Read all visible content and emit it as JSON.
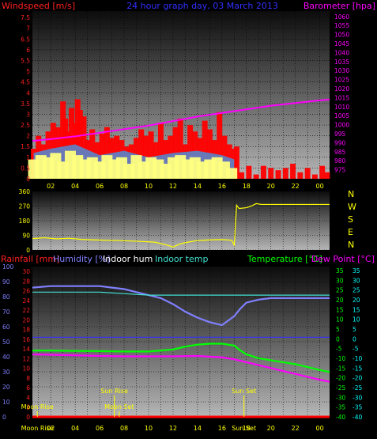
{
  "chart_data": [
    {
      "type": "bar",
      "title": "24 hour graph day, 03 March 2013",
      "ylabel_left": "Windspeed [m/s]",
      "ylabel_right": "Barometer [hpa]",
      "x_ticks": [
        "02",
        "04",
        "06",
        "08",
        "10",
        "12",
        "14",
        "16",
        "18",
        "20",
        "22",
        "00"
      ],
      "y_left_ticks": [
        "0",
        "0.5",
        "1",
        "1.5",
        "2",
        "2.5",
        "3",
        "3.5",
        "4",
        "4.5",
        "5",
        "5.5",
        "6",
        "6.5",
        "7",
        "7.5"
      ],
      "y_right_ticks": [
        "975",
        "980",
        "985",
        "990",
        "995",
        "1000",
        "1005",
        "1010",
        "1015",
        "1020",
        "1025",
        "1030",
        "1035",
        "1040",
        "1045",
        "1050",
        "1055",
        "1060"
      ],
      "ylim_left": [
        0,
        7.8
      ],
      "ylim_right": [
        970,
        1063
      ],
      "xlim_hours": [
        0.5,
        24.8
      ],
      "grid": true,
      "series": [
        {
          "name": "Windspeed [m/s]",
          "color": "#ff0000",
          "kind": "bar",
          "x": [
            0.6,
            1.0,
            1.4,
            1.8,
            2.2,
            2.6,
            3.0,
            3.2,
            3.4,
            3.7,
            4.0,
            4.2,
            4.4,
            4.7,
            5.0,
            5.4,
            5.8,
            6.2,
            6.6,
            7.0,
            7.4,
            7.8,
            8.2,
            8.6,
            9.0,
            9.4,
            9.8,
            10.2,
            10.6,
            11.0,
            11.4,
            11.8,
            12.2,
            12.6,
            13.0,
            13.4,
            13.8,
            14.2,
            14.6,
            15.0,
            15.4,
            15.8,
            16.2,
            16.6,
            17.0,
            17.2,
            17.6,
            18.2,
            18.8,
            19.4,
            20.0,
            20.6,
            21.2,
            21.8,
            22.4,
            23.0,
            23.6,
            24.2,
            24.6
          ],
          "values": [
            1.4,
            2.0,
            1.6,
            2.2,
            2.6,
            2.4,
            3.6,
            2.8,
            2.2,
            3.3,
            2.6,
            3.7,
            3.2,
            2.9,
            1.8,
            2.3,
            1.7,
            2.1,
            2.4,
            1.9,
            2.0,
            1.8,
            1.5,
            1.6,
            1.9,
            2.3,
            2.0,
            2.2,
            1.7,
            2.6,
            1.8,
            2.0,
            2.4,
            2.8,
            1.6,
            2.5,
            2.2,
            1.9,
            2.7,
            2.3,
            1.8,
            3.1,
            2.0,
            1.6,
            1.4,
            1.5,
            0.3,
            0.6,
            0.2,
            0.6,
            0.5,
            0.4,
            0.5,
            0.7,
            0.3,
            0.5,
            0.2,
            0.6,
            0.3
          ]
        },
        {
          "name": "Wind gust",
          "color": "#4f8cd6",
          "kind": "band",
          "x": [
            0.6,
            2.0,
            4.0,
            6.0,
            8.0,
            10.0,
            12.0,
            14.0,
            16.0,
            17.0
          ],
          "values": [
            1.2,
            1.4,
            1.6,
            1.1,
            1.3,
            1.0,
            1.2,
            1.3,
            1.1,
            0.9
          ]
        },
        {
          "name": "Wind average",
          "color": "#ffff80",
          "kind": "bar",
          "x": [
            0.6,
            1.2,
            1.8,
            2.4,
            3.0,
            3.6,
            4.2,
            4.8,
            5.4,
            6.0,
            6.6,
            7.2,
            7.8,
            8.4,
            9.0,
            9.6,
            10.2,
            10.8,
            11.4,
            12.0,
            12.6,
            13.2,
            13.8,
            14.4,
            15.0,
            15.6,
            16.2,
            16.8
          ],
          "values": [
            0.9,
            1.1,
            1.0,
            1.2,
            0.8,
            1.3,
            1.1,
            0.9,
            1.0,
            0.8,
            1.1,
            0.9,
            1.0,
            0.7,
            1.1,
            0.8,
            1.0,
            0.9,
            0.7,
            1.0,
            1.1,
            0.9,
            1.0,
            0.8,
            0.9,
            1.0,
            0.8,
            0.5
          ]
        },
        {
          "name": "Barometer [hpa]",
          "color": "#ff00ff",
          "kind": "line",
          "x": [
            0.5,
            2,
            4,
            6,
            8,
            10,
            12,
            14,
            16,
            18,
            20,
            22,
            24,
            24.8
          ],
          "values": [
            991.0,
            992.0,
            993.5,
            995.5,
            997.5,
            999.5,
            1002.0,
            1004.5,
            1006.5,
            1008.5,
            1010.5,
            1012.0,
            1013.5,
            1014.0
          ]
        }
      ]
    },
    {
      "type": "line",
      "ylabel_right": "N W S E N",
      "compass": [
        "N",
        "W",
        "S",
        "E",
        "N"
      ],
      "y_ticks": [
        "0",
        "90",
        "180",
        "270",
        "360"
      ],
      "ylim": [
        0,
        360
      ],
      "xlim_hours": [
        0.5,
        24.8
      ],
      "grid": true,
      "series": [
        {
          "name": "Wind direction",
          "color": "#ffff00",
          "x": [
            0.5,
            1.5,
            2.5,
            3.5,
            4.5,
            5.5,
            6.5,
            7.5,
            8.5,
            9.5,
            10.5,
            11.5,
            12.0,
            12.5,
            13.0,
            14.0,
            15.0,
            16.0,
            16.8,
            17.0,
            17.2,
            17.4,
            18.0,
            18.4,
            18.8,
            19.2,
            20,
            22,
            24,
            24.8
          ],
          "values": [
            70,
            75,
            68,
            72,
            65,
            62,
            60,
            58,
            55,
            52,
            48,
            30,
            18,
            35,
            45,
            58,
            62,
            64,
            60,
            30,
            275,
            255,
            260,
            270,
            285,
            280,
            280,
            280,
            280,
            280
          ]
        }
      ]
    },
    {
      "type": "line",
      "ylabel_left": "Rainfall [mm]",
      "ylabel_humidity": "Humidity [%]",
      "legend": [
        "Indoor hum",
        "Indoor temp"
      ],
      "ylabel_right_1": "Temperature [°C]",
      "ylabel_right_2": "Dew Point [°C]",
      "y_rain_ticks": [
        "0",
        "2",
        "4",
        "6",
        "8",
        "10",
        "12",
        "14",
        "16",
        "18",
        "20",
        "22",
        "24",
        "26",
        "28",
        "30"
      ],
      "y_hum_ticks": [
        "0",
        "10",
        "20",
        "30",
        "40",
        "50",
        "60",
        "70",
        "80",
        "90",
        "100"
      ],
      "y_temp_ticks": [
        "-40",
        "-35",
        "-30",
        "-25",
        "-20",
        "-15",
        "-10",
        "-5",
        "0",
        "5",
        "10",
        "15",
        "20",
        "25",
        "30",
        "35"
      ],
      "ylim_hum": [
        0,
        100
      ],
      "ylim_temp": [
        -40,
        37
      ],
      "xlim_hours": [
        0.5,
        24.8
      ],
      "x_ticks": [
        "Moon Rise",
        "02",
        "04",
        "06",
        "08",
        "10",
        "12",
        "14",
        "16",
        "Sun Set",
        "18",
        "20",
        "22",
        "00"
      ],
      "annotations": [
        {
          "text": "Sun Rise",
          "hour": 7.2,
          "color": "#ffff00"
        },
        {
          "text": "Sun Set",
          "hour": 17.8,
          "color": "#ffff00"
        },
        {
          "text": "Moon Rise",
          "hour": 0.9,
          "color": "#ffff00"
        },
        {
          "text": "Moon Set",
          "hour": 7.6,
          "color": "#ffff00"
        }
      ],
      "series": [
        {
          "name": "Humidity [%]",
          "axis": "humidity",
          "color": "#8080ff",
          "x": [
            0.5,
            2,
            4,
            6,
            7,
            8,
            9,
            10,
            11,
            12,
            13,
            14,
            15,
            16,
            17,
            17.5,
            18,
            19,
            20,
            22,
            24,
            24.8
          ],
          "values": [
            86,
            87,
            87,
            87,
            86,
            85,
            83,
            81,
            79,
            75,
            70,
            66,
            63,
            61,
            67,
            72,
            76,
            78,
            79,
            79,
            79,
            79
          ]
        },
        {
          "name": "Indoor temp",
          "axis": "humidity",
          "color": "#40e0d0",
          "x": [
            0.5,
            2,
            4,
            6,
            8,
            10,
            12,
            14,
            16,
            18,
            20,
            22,
            24,
            24.8
          ],
          "values": [
            83,
            83,
            83,
            83,
            82,
            81,
            81,
            81,
            81,
            81,
            81,
            81,
            81,
            81
          ]
        },
        {
          "name": "Indoor hum",
          "axis": "humidity",
          "color": "#3030ff",
          "x": [
            0.5,
            24.8
          ],
          "values": [
            53,
            53
          ]
        },
        {
          "name": "Temperature [°C]",
          "axis": "temp",
          "color": "#00ff00",
          "x": [
            0.5,
            2,
            4,
            6,
            8,
            10,
            11,
            12,
            13,
            14,
            15,
            16,
            16.5,
            17,
            17.5,
            18,
            19,
            20,
            21,
            22,
            23,
            24,
            24.8
          ],
          "values": [
            -6,
            -6,
            -6.2,
            -6.3,
            -6.5,
            -6.5,
            -6,
            -5.5,
            -4,
            -3,
            -2.5,
            -2.5,
            -3,
            -3.5,
            -6,
            -8,
            -10,
            -11,
            -12,
            -13,
            -14.5,
            -16,
            -17
          ]
        },
        {
          "name": "Dew Point [°C]",
          "axis": "temp",
          "color": "#ff00ff",
          "x": [
            0.5,
            2,
            4,
            6,
            8,
            10,
            12,
            14,
            16,
            17,
            18,
            19,
            20,
            21,
            22,
            23,
            24,
            24.8
          ],
          "values": [
            -8,
            -8.2,
            -8.5,
            -8.8,
            -9,
            -9,
            -9,
            -8.8,
            -9.5,
            -10.5,
            -12,
            -13.5,
            -15,
            -16.5,
            -18,
            -19.5,
            -21,
            -22
          ]
        },
        {
          "name": "Rainfall [mm]",
          "axis": "rain",
          "color": "#ff0000",
          "x": [
            0.5,
            24.8
          ],
          "values": [
            0,
            0
          ]
        }
      ]
    }
  ]
}
